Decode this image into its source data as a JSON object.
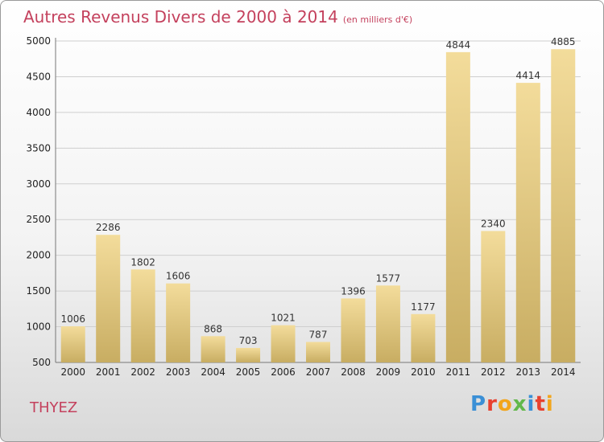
{
  "header": {
    "title": "Autres Revenus Divers de 2000 à 2014",
    "unit": "(en milliers d'€)"
  },
  "footer": {
    "town": "THYEZ",
    "logo_text": "Proxiti",
    "logo_colors": [
      "#3a8fd6",
      "#e8412f",
      "#f2a51c",
      "#62b84a",
      "#3a8fd6",
      "#e8412f",
      "#f2a51c"
    ]
  },
  "colors": {
    "title": "#c4415d",
    "bar_light": "#f3dc9b",
    "bar_dark": "#c8ad62"
  },
  "chart_data": {
    "type": "bar",
    "title": "Autres Revenus Divers de 2000 à 2014",
    "subtitle": "(en milliers d'€)",
    "categories": [
      "2000",
      "2001",
      "2002",
      "2003",
      "2004",
      "2005",
      "2006",
      "2007",
      "2008",
      "2009",
      "2010",
      "2011",
      "2012",
      "2013",
      "2014"
    ],
    "values": [
      1006,
      2286,
      1802,
      1606,
      868,
      703,
      1021,
      787,
      1396,
      1577,
      1177,
      4844,
      2340,
      4414,
      4885
    ],
    "ylim": [
      500,
      5000
    ],
    "yticks": [
      500,
      1000,
      1500,
      2000,
      2500,
      3000,
      3500,
      4000,
      4500,
      5000
    ],
    "grid": true,
    "legend": "none"
  }
}
